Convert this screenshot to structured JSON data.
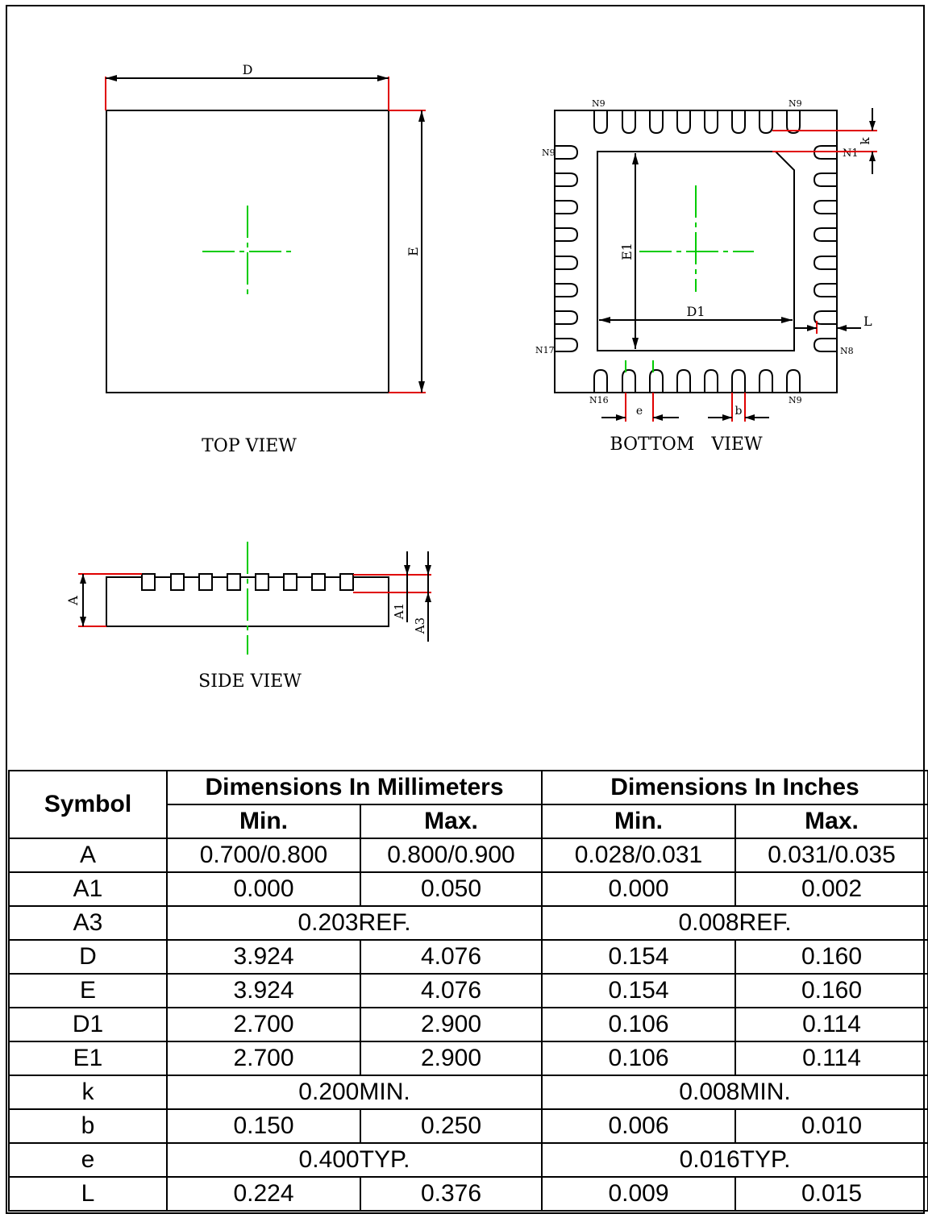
{
  "views": {
    "top": {
      "caption": "TOP VIEW",
      "dim_d": "D",
      "dim_e": "E"
    },
    "bottom": {
      "caption": "BOTTOM   VIEW",
      "pins": {
        "top_left": "N9",
        "top_right": "N9",
        "left_top": "N9",
        "right_top": "N1",
        "left_bottom": "N17",
        "right_bottom": "N8",
        "bottom_left": "N16",
        "bottom_right": "N9"
      },
      "dim_e1": "E1",
      "dim_d1": "D1",
      "dim_k": "k",
      "dim_l": "L",
      "dim_e": "e",
      "dim_b": "b"
    },
    "side": {
      "caption": "SIDE VIEW",
      "dim_a": "A",
      "dim_a1": "A1",
      "dim_a3": "A3"
    }
  },
  "table": {
    "symbol_header": "Symbol",
    "mm_header": "Dimensions In Millimeters",
    "in_header": "Dimensions In Inches",
    "min_label": "Min.",
    "max_label": "Max.",
    "rows": [
      {
        "symbol": "A",
        "mm_min": "0.700/0.800",
        "mm_max": "0.800/0.900",
        "in_min": "0.028/0.031",
        "in_max": "0.031/0.035"
      },
      {
        "symbol": "A1",
        "mm_min": "0.000",
        "mm_max": "0.050",
        "in_min": "0.000",
        "in_max": "0.002"
      },
      {
        "symbol": "A3",
        "mm_span": "0.203REF.",
        "in_span": "0.008REF."
      },
      {
        "symbol": "D",
        "mm_min": "3.924",
        "mm_max": "4.076",
        "in_min": "0.154",
        "in_max": "0.160"
      },
      {
        "symbol": "E",
        "mm_min": "3.924",
        "mm_max": "4.076",
        "in_min": "0.154",
        "in_max": "0.160"
      },
      {
        "symbol": "D1",
        "mm_min": "2.700",
        "mm_max": "2.900",
        "in_min": "0.106",
        "in_max": "0.114"
      },
      {
        "symbol": "E1",
        "mm_min": "2.700",
        "mm_max": "2.900",
        "in_min": "0.106",
        "in_max": "0.114"
      },
      {
        "symbol": "k",
        "mm_span": "0.200MIN.",
        "in_span": "0.008MIN."
      },
      {
        "symbol": "b",
        "mm_min": "0.150",
        "mm_max": "0.250",
        "in_min": "0.006",
        "in_max": "0.010"
      },
      {
        "symbol": "e",
        "mm_span": "0.400TYP.",
        "in_span": "0.016TYP."
      },
      {
        "symbol": "L",
        "mm_min": "0.224",
        "mm_max": "0.376",
        "in_min": "0.009",
        "in_max": "0.015"
      }
    ]
  },
  "colors": {
    "outline": "#000000",
    "centerline": "#00cc00",
    "extension": "#e00000"
  }
}
